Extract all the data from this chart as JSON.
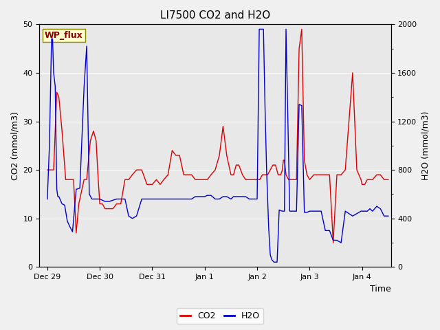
{
  "title": "LI7500 CO2 and H2O",
  "xlabel": "Time",
  "ylabel_left": "CO2 (mmol/m3)",
  "ylabel_right": "H2O (mmol/m3)",
  "legend_label": "WP_flux",
  "co2_label": "CO2",
  "h2o_label": "H2O",
  "co2_color": "#dd0000",
  "h2o_color": "#0000cc",
  "ylim_left": [
    0,
    50
  ],
  "ylim_right": [
    0,
    2000
  ],
  "fig_bg_color": "#f0f0f0",
  "plot_bg_color": "#e8e8e8",
  "legend_box_facecolor": "#ffffcc",
  "legend_box_edgecolor": "#888800",
  "legend_text_color": "#880000",
  "grid_color": "#ffffff",
  "tick_labels_x": [
    "Dec 29",
    "Dec 30",
    "Dec 31",
    "Jan 1",
    "Jan 2",
    "Jan 3",
    "Jan 4"
  ],
  "tick_positions_x": [
    0,
    1,
    2,
    3,
    4,
    5,
    6
  ],
  "xlim": [
    -0.15,
    6.55
  ],
  "co2_x": [
    0.0,
    0.05,
    0.12,
    0.18,
    0.22,
    0.28,
    0.35,
    0.42,
    0.5,
    0.55,
    0.6,
    0.7,
    0.75,
    0.82,
    0.88,
    0.93,
    0.97,
    1.0,
    1.05,
    1.1,
    1.18,
    1.25,
    1.32,
    1.4,
    1.48,
    1.55,
    1.62,
    1.7,
    1.8,
    1.9,
    2.0,
    2.08,
    2.15,
    2.22,
    2.3,
    2.38,
    2.45,
    2.52,
    2.6,
    2.68,
    2.75,
    2.82,
    2.9,
    2.98,
    3.0,
    3.05,
    3.12,
    3.2,
    3.28,
    3.35,
    3.42,
    3.5,
    3.55,
    3.6,
    3.65,
    3.72,
    3.78,
    3.85,
    3.92,
    3.98,
    4.0,
    4.05,
    4.1,
    4.15,
    4.2,
    4.25,
    4.3,
    4.35,
    4.4,
    4.45,
    4.48,
    4.5,
    4.52,
    4.55,
    4.6,
    4.65,
    4.7,
    4.75,
    4.8,
    4.85,
    4.9,
    4.95,
    5.0,
    5.08,
    5.15,
    5.22,
    5.3,
    5.38,
    5.45,
    5.52,
    5.6,
    5.68,
    5.75,
    5.82,
    5.9,
    5.98,
    6.0,
    6.05,
    6.1,
    6.15,
    6.2,
    6.28,
    6.35,
    6.42,
    6.5
  ],
  "co2_y": [
    20,
    20,
    20,
    36,
    35,
    28,
    18,
    18,
    18,
    7,
    13,
    18,
    18,
    26,
    28,
    26,
    18,
    13,
    13,
    12,
    12,
    12,
    13,
    13,
    18,
    18,
    19,
    20,
    20,
    17,
    17,
    18,
    17,
    18,
    19,
    24,
    23,
    23,
    19,
    19,
    19,
    18,
    18,
    18,
    18,
    18,
    19,
    20,
    23,
    29,
    23,
    19,
    19,
    21,
    21,
    19,
    18,
    18,
    18,
    18,
    18,
    18,
    19,
    19,
    19,
    20,
    21,
    21,
    19,
    19,
    20,
    22,
    22,
    19,
    18,
    18,
    18,
    18,
    45,
    49,
    22,
    19,
    18,
    19,
    19,
    19,
    19,
    19,
    5,
    19,
    19,
    20,
    30,
    40,
    20,
    18,
    17,
    17,
    18,
    18,
    18,
    19,
    19,
    18,
    18
  ],
  "h2o_x": [
    0.0,
    0.04,
    0.08,
    0.1,
    0.12,
    0.15,
    0.18,
    0.2,
    0.22,
    0.28,
    0.33,
    0.38,
    0.42,
    0.48,
    0.55,
    0.62,
    0.7,
    0.75,
    0.8,
    0.85,
    0.88,
    0.92,
    0.95,
    0.98,
    1.0,
    1.05,
    1.1,
    1.18,
    1.25,
    1.32,
    1.4,
    1.48,
    1.55,
    1.62,
    1.7,
    1.8,
    1.9,
    2.0,
    2.08,
    2.15,
    2.22,
    2.3,
    2.38,
    2.45,
    2.52,
    2.6,
    2.68,
    2.75,
    2.82,
    2.9,
    2.98,
    3.0,
    3.05,
    3.12,
    3.2,
    3.28,
    3.35,
    3.42,
    3.5,
    3.55,
    3.6,
    3.65,
    3.72,
    3.78,
    3.85,
    3.92,
    3.98,
    4.0,
    4.04,
    4.08,
    4.12,
    4.15,
    4.18,
    4.22,
    4.25,
    4.28,
    4.32,
    4.38,
    4.42,
    4.48,
    4.52,
    4.55,
    4.58,
    4.62,
    4.65,
    4.7,
    4.75,
    4.8,
    4.85,
    4.9,
    4.95,
    5.0,
    5.08,
    5.15,
    5.22,
    5.3,
    5.38,
    5.45,
    5.52,
    5.6,
    5.68,
    5.75,
    5.82,
    5.9,
    5.98,
    6.0,
    6.05,
    6.1,
    6.15,
    6.2,
    6.28,
    6.35,
    6.42,
    6.5
  ],
  "h2o_y": [
    560,
    1000,
    1880,
    1880,
    1600,
    1490,
    640,
    580,
    580,
    520,
    510,
    380,
    340,
    290,
    640,
    650,
    1480,
    1820,
    600,
    560,
    560,
    560,
    560,
    560,
    560,
    550,
    540,
    540,
    550,
    560,
    560,
    560,
    420,
    400,
    420,
    560,
    560,
    560,
    560,
    560,
    560,
    560,
    560,
    560,
    560,
    560,
    560,
    560,
    580,
    580,
    580,
    580,
    590,
    590,
    560,
    560,
    580,
    580,
    560,
    580,
    580,
    580,
    580,
    580,
    560,
    560,
    560,
    560,
    1960,
    1960,
    1960,
    1320,
    800,
    320,
    100,
    60,
    40,
    40,
    470,
    460,
    460,
    1960,
    1340,
    460,
    460,
    460,
    460,
    1340,
    1330,
    450,
    450,
    460,
    460,
    460,
    460,
    300,
    300,
    220,
    220,
    200,
    460,
    440,
    420,
    440,
    460,
    460,
    460,
    460,
    480,
    460,
    500,
    480,
    420,
    420
  ]
}
